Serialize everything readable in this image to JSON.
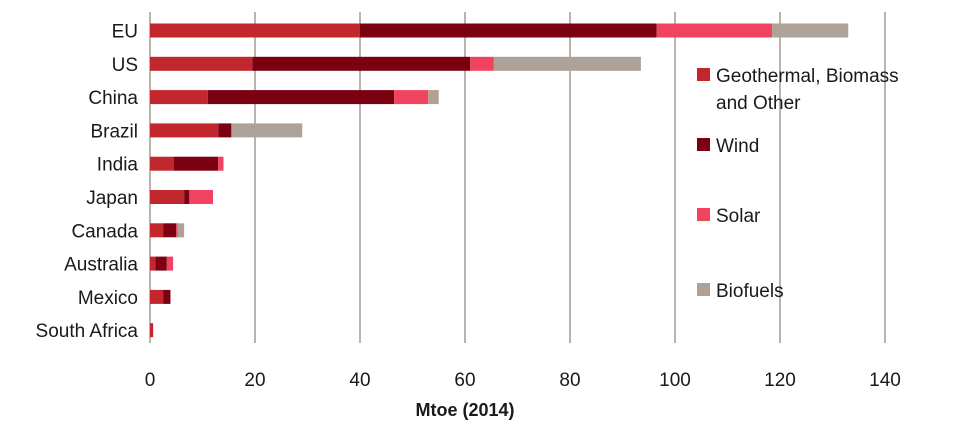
{
  "chart_data": {
    "type": "bar",
    "orientation": "horizontal",
    "stacked": true,
    "title": "",
    "xlabel": "Mtoe (2014)",
    "ylabel": "",
    "xlim": [
      0,
      140
    ],
    "xticks": [
      "0",
      "20",
      "40",
      "60",
      "80",
      "100",
      "120",
      "140"
    ],
    "grid": "vertical",
    "legend_position": "right",
    "categories": [
      "EU",
      "US",
      "China",
      "Brazil",
      "India",
      "Japan",
      "Canada",
      "Australia",
      "Mexico",
      "South Africa"
    ],
    "series": [
      {
        "name": "Geothermal, Biomass and Other",
        "color": "#c1272d",
        "values": [
          40,
          19.5,
          11,
          13,
          4.5,
          6.5,
          2.5,
          1,
          2.5,
          0.6
        ]
      },
      {
        "name": "Wind",
        "color": "#7a0012",
        "values": [
          56.5,
          41.5,
          35.5,
          2.5,
          8.5,
          1,
          2.5,
          2.2,
          1.4,
          0
        ]
      },
      {
        "name": "Solar",
        "color": "#f0435f",
        "values": [
          22,
          4.5,
          6.5,
          0,
          1,
          4.5,
          0.3,
          1.2,
          0,
          0
        ]
      },
      {
        "name": "Biofuels",
        "color": "#ada198",
        "values": [
          14.5,
          28,
          2,
          13.5,
          0,
          0,
          1.2,
          0,
          0,
          0
        ]
      }
    ]
  }
}
